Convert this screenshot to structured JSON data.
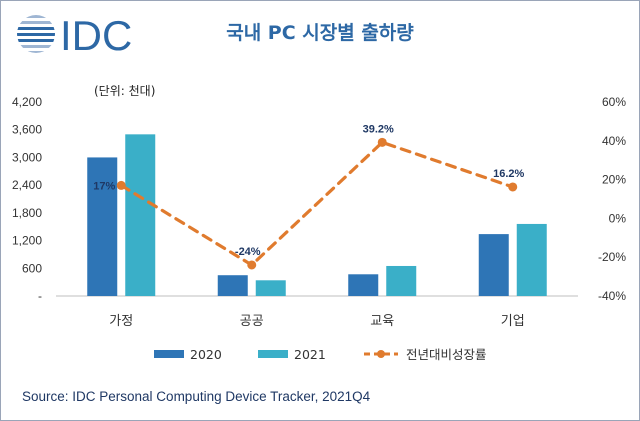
{
  "logo": {
    "text": "IDC",
    "colors": {
      "main": "#2d68a5",
      "light": "#9fb6d3"
    }
  },
  "title": "국내 PC 시장별 출하량",
  "unit_label": "(단위: 천대)",
  "source": "Source: IDC Personal Computing Device Tracker, 2021Q4",
  "chart_data": {
    "type": "bar",
    "categories": [
      "가정",
      "공공",
      "교육",
      "기업"
    ],
    "series": [
      {
        "name": "2020",
        "kind": "bar",
        "axis": "left",
        "values": [
          3000,
          450,
          470,
          1340
        ],
        "color": "#2e75b6"
      },
      {
        "name": "2021",
        "kind": "bar",
        "axis": "left",
        "values": [
          3500,
          340,
          650,
          1560
        ],
        "color": "#3aafc8"
      },
      {
        "name": "전년대비성장률",
        "kind": "line",
        "axis": "right",
        "values": [
          17,
          -24,
          39.2,
          16.2
        ],
        "color": "#e07b2e",
        "labels": [
          "17%",
          "-24%",
          "39.2%",
          "16.2%"
        ]
      }
    ],
    "left_axis": {
      "min": 0,
      "max": 4200,
      "ticks": [
        "-",
        "600",
        "1,200",
        "1,800",
        "2,400",
        "3,000",
        "3,600",
        "4,200"
      ]
    },
    "right_axis": {
      "min": -40,
      "max": 60,
      "ticks": [
        "-40%",
        "-20%",
        "0%",
        "20%",
        "40%",
        "60%"
      ]
    },
    "grid": false,
    "legend": "bottom"
  }
}
